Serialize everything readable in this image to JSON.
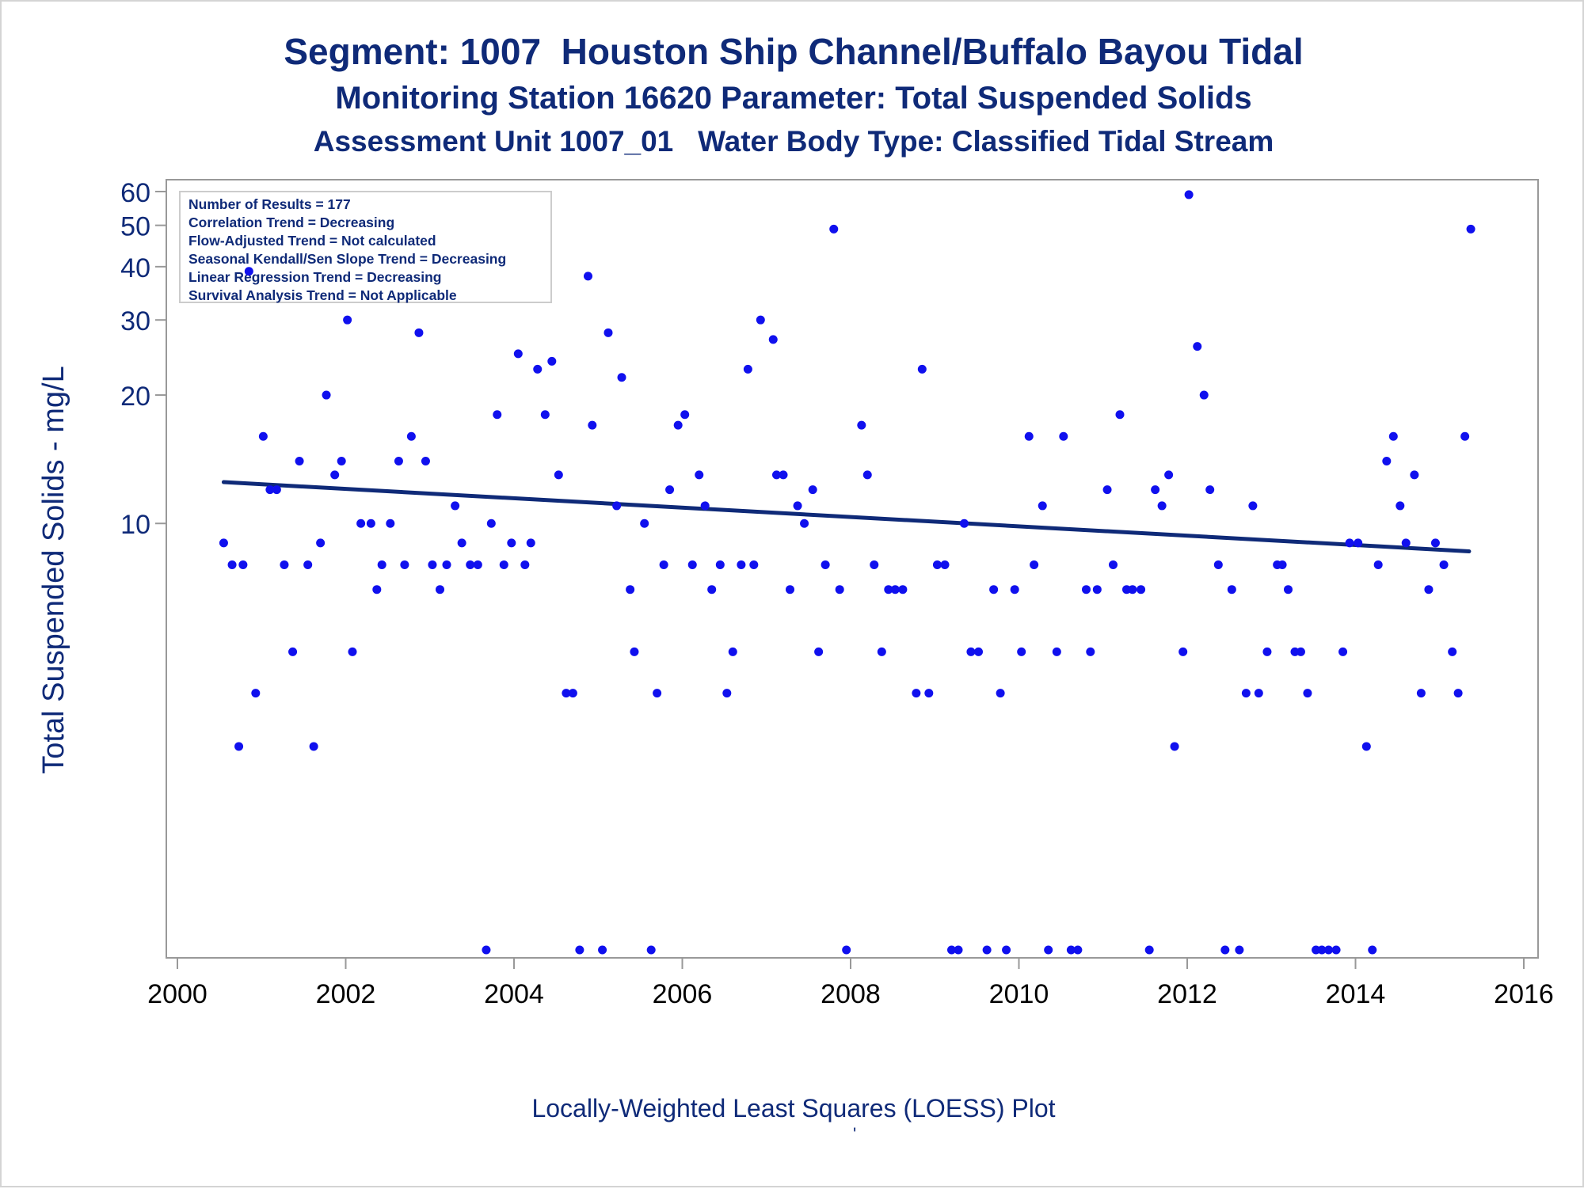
{
  "titles": {
    "line1": "Segment: 1007  Houston Ship Channel/Buffalo Bayou Tidal",
    "line2": "Monitoring Station 16620 Parameter: Total Suspended Solids",
    "line3": "Assessment Unit 1007_01   Water Body Type: Classified Tidal Stream"
  },
  "footnote": "Locally-Weighted Least Squares (LOESS) Plot",
  "footmark": "'",
  "colors": {
    "text": "#0f2a78",
    "points": "#1010ee",
    "trend": "#0f2a78",
    "frame": "#999999"
  },
  "chart_data": {
    "type": "scatter",
    "ylabel": "Total Suspended Solids - mg/L",
    "xlabel": "",
    "y_scale": "log",
    "ylim": [
      1,
      60
    ],
    "xlim": [
      2000,
      2016.2
    ],
    "x_ticks": [
      2000,
      2002,
      2004,
      2006,
      2008,
      2010,
      2012,
      2014,
      2016
    ],
    "y_ticks": [
      10,
      20,
      30,
      40,
      50,
      60
    ],
    "grid": false,
    "legend": "none",
    "stats_box": [
      "Number of Results = 177",
      "Correlation Trend = Decreasing",
      "Flow-Adjusted Trend = Not calculated",
      "Seasonal Kendall/Sen Slope Trend = Decreasing",
      "Linear Regression Trend = Decreasing",
      "Survival Analysis Trend = Not Applicable"
    ],
    "trend_line": {
      "x": [
        2000.55,
        2015.35
      ],
      "y": [
        12.5,
        8.6
      ]
    },
    "points": [
      [
        2000.55,
        9
      ],
      [
        2000.65,
        8
      ],
      [
        2000.73,
        3
      ],
      [
        2000.78,
        8
      ],
      [
        2000.85,
        39
      ],
      [
        2000.93,
        4
      ],
      [
        2001.02,
        16
      ],
      [
        2001.1,
        12
      ],
      [
        2001.18,
        12
      ],
      [
        2001.27,
        8
      ],
      [
        2001.37,
        5
      ],
      [
        2001.45,
        14
      ],
      [
        2001.55,
        8
      ],
      [
        2001.62,
        3
      ],
      [
        2001.7,
        9
      ],
      [
        2001.77,
        20
      ],
      [
        2001.87,
        13
      ],
      [
        2001.95,
        14
      ],
      [
        2002.02,
        30
      ],
      [
        2002.08,
        5
      ],
      [
        2002.18,
        10
      ],
      [
        2002.3,
        10
      ],
      [
        2002.37,
        7
      ],
      [
        2002.43,
        8
      ],
      [
        2002.53,
        10
      ],
      [
        2002.63,
        14
      ],
      [
        2002.7,
        8
      ],
      [
        2002.78,
        16
      ],
      [
        2002.87,
        28
      ],
      [
        2002.95,
        14
      ],
      [
        2003.03,
        8
      ],
      [
        2003.12,
        7
      ],
      [
        2003.2,
        8
      ],
      [
        2003.3,
        11
      ],
      [
        2003.38,
        9
      ],
      [
        2003.48,
        8
      ],
      [
        2003.57,
        8
      ],
      [
        2003.67,
        1
      ],
      [
        2003.73,
        10
      ],
      [
        2003.8,
        18
      ],
      [
        2003.88,
        8
      ],
      [
        2003.97,
        9
      ],
      [
        2004.05,
        25
      ],
      [
        2004.13,
        8
      ],
      [
        2004.2,
        9
      ],
      [
        2004.28,
        23
      ],
      [
        2004.37,
        18
      ],
      [
        2004.45,
        24
      ],
      [
        2004.53,
        13
      ],
      [
        2004.62,
        4
      ],
      [
        2004.7,
        4
      ],
      [
        2004.78,
        1
      ],
      [
        2004.88,
        38
      ],
      [
        2004.93,
        17
      ],
      [
        2005.05,
        1
      ],
      [
        2005.12,
        28
      ],
      [
        2005.22,
        11
      ],
      [
        2005.28,
        22
      ],
      [
        2005.38,
        7
      ],
      [
        2005.43,
        5
      ],
      [
        2005.55,
        10
      ],
      [
        2005.63,
        1
      ],
      [
        2005.7,
        4
      ],
      [
        2005.78,
        8
      ],
      [
        2005.85,
        12
      ],
      [
        2005.95,
        17
      ],
      [
        2006.03,
        18
      ],
      [
        2006.12,
        8
      ],
      [
        2006.2,
        13
      ],
      [
        2006.27,
        11
      ],
      [
        2006.35,
        7
      ],
      [
        2006.45,
        8
      ],
      [
        2006.53,
        4
      ],
      [
        2006.6,
        5
      ],
      [
        2006.7,
        8
      ],
      [
        2006.78,
        23
      ],
      [
        2006.85,
        8
      ],
      [
        2006.93,
        30
      ],
      [
        2007.08,
        27
      ],
      [
        2007.12,
        13
      ],
      [
        2007.2,
        13
      ],
      [
        2007.28,
        7
      ],
      [
        2007.37,
        11
      ],
      [
        2007.45,
        10
      ],
      [
        2007.55,
        12
      ],
      [
        2007.62,
        5
      ],
      [
        2007.7,
        8
      ],
      [
        2007.8,
        49
      ],
      [
        2007.87,
        7
      ],
      [
        2007.95,
        1
      ],
      [
        2008.13,
        17
      ],
      [
        2008.2,
        13
      ],
      [
        2008.28,
        8
      ],
      [
        2008.37,
        5
      ],
      [
        2008.45,
        7
      ],
      [
        2008.53,
        7
      ],
      [
        2008.62,
        7
      ],
      [
        2008.78,
        4
      ],
      [
        2008.85,
        23
      ],
      [
        2008.93,
        4
      ],
      [
        2009.03,
        8
      ],
      [
        2009.12,
        8
      ],
      [
        2009.2,
        1
      ],
      [
        2009.28,
        1
      ],
      [
        2009.35,
        10
      ],
      [
        2009.43,
        5
      ],
      [
        2009.52,
        5
      ],
      [
        2009.62,
        1
      ],
      [
        2009.7,
        7
      ],
      [
        2009.78,
        4
      ],
      [
        2009.85,
        1
      ],
      [
        2009.95,
        7
      ],
      [
        2010.03,
        5
      ],
      [
        2010.12,
        16
      ],
      [
        2010.18,
        8
      ],
      [
        2010.28,
        11
      ],
      [
        2010.35,
        1
      ],
      [
        2010.45,
        5
      ],
      [
        2010.53,
        16
      ],
      [
        2010.62,
        1
      ],
      [
        2010.7,
        1
      ],
      [
        2010.8,
        7
      ],
      [
        2010.85,
        5
      ],
      [
        2010.93,
        7
      ],
      [
        2011.05,
        12
      ],
      [
        2011.12,
        8
      ],
      [
        2011.2,
        18
      ],
      [
        2011.28,
        7
      ],
      [
        2011.35,
        7
      ],
      [
        2011.45,
        7
      ],
      [
        2011.55,
        1
      ],
      [
        2011.62,
        12
      ],
      [
        2011.7,
        11
      ],
      [
        2011.78,
        13
      ],
      [
        2011.85,
        3
      ],
      [
        2011.95,
        5
      ],
      [
        2012.02,
        59
      ],
      [
        2012.12,
        26
      ],
      [
        2012.2,
        20
      ],
      [
        2012.27,
        12
      ],
      [
        2012.37,
        8
      ],
      [
        2012.45,
        1
      ],
      [
        2012.53,
        7
      ],
      [
        2012.62,
        1
      ],
      [
        2012.7,
        4
      ],
      [
        2012.78,
        11
      ],
      [
        2012.85,
        4
      ],
      [
        2012.95,
        5
      ],
      [
        2013.07,
        8
      ],
      [
        2013.13,
        8
      ],
      [
        2013.2,
        7
      ],
      [
        2013.28,
        5
      ],
      [
        2013.35,
        5
      ],
      [
        2013.43,
        4
      ],
      [
        2013.53,
        1
      ],
      [
        2013.6,
        1
      ],
      [
        2013.68,
        1
      ],
      [
        2013.77,
        1
      ],
      [
        2013.85,
        5
      ],
      [
        2013.93,
        9
      ],
      [
        2014.03,
        9
      ],
      [
        2014.13,
        3
      ],
      [
        2014.2,
        1
      ],
      [
        2014.27,
        8
      ],
      [
        2014.37,
        14
      ],
      [
        2014.45,
        16
      ],
      [
        2014.53,
        11
      ],
      [
        2014.6,
        9
      ],
      [
        2014.7,
        13
      ],
      [
        2014.78,
        4
      ],
      [
        2014.87,
        7
      ],
      [
        2014.95,
        9
      ],
      [
        2015.05,
        8
      ],
      [
        2015.15,
        5
      ],
      [
        2015.22,
        4
      ],
      [
        2015.3,
        16
      ],
      [
        2015.37,
        49
      ]
    ]
  }
}
